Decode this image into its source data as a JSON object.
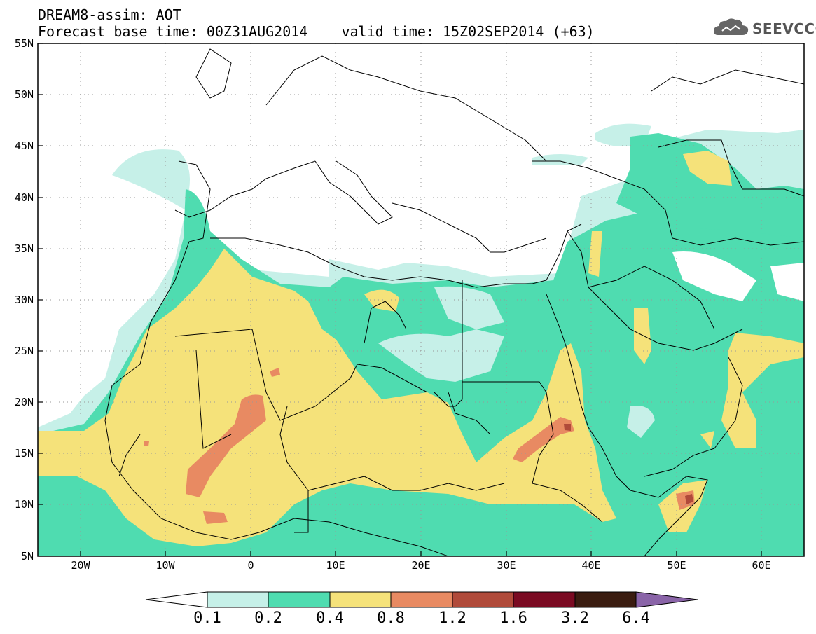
{
  "header": {
    "title_line1": "DREAM8-assim: AOT",
    "title_line2": "Forecast base time: 00Z31AUG2014    valid time: 15Z02SEP2014 (+63)",
    "logo_text": "SEEVCCC",
    "logo_icon": "cloud-logo-icon"
  },
  "map": {
    "lon_range": [
      -25,
      65
    ],
    "lat_range": [
      5,
      55
    ],
    "lat_ticks": [
      "55N",
      "50N",
      "45N",
      "40N",
      "35N",
      "30N",
      "25N",
      "20N",
      "15N",
      "10N",
      "5N"
    ],
    "lon_ticks": [
      "20W",
      "10W",
      "0",
      "10E",
      "20E",
      "30E",
      "40E",
      "50E",
      "60E"
    ],
    "grid": "dotted"
  },
  "colorbar": {
    "labels": [
      "0.1",
      "0.2",
      "0.4",
      "0.8",
      "1.2",
      "1.6",
      "3.2",
      "6.4"
    ],
    "colors": [
      "#ffffff",
      "#c6f0e8",
      "#4fdcb0",
      "#f5e27a",
      "#e88a62",
      "#b04a3a",
      "#7a0a22",
      "#3a1c10",
      "#8a64a8"
    ]
  },
  "colors": {
    "light": "#c6f0e8",
    "green": "#4fdcb0",
    "yellow": "#f5e27a",
    "orange": "#e88a62",
    "border": "#000000"
  }
}
